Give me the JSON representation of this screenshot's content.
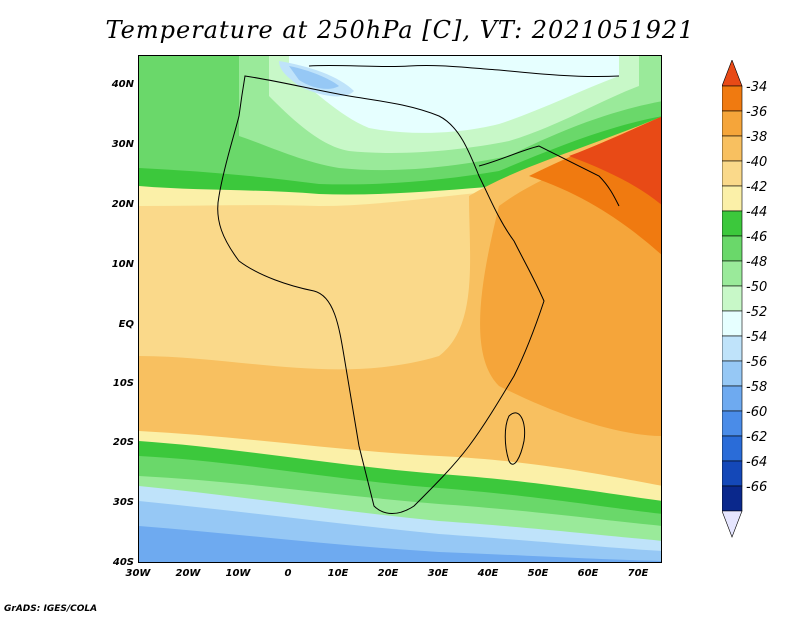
{
  "title": "Temperature at 250hPa [C], VT: 2021051921",
  "credit": "GrADS: IGES/COLA",
  "lat_labels": [
    "40N",
    "30N",
    "20N",
    "10N",
    "EQ",
    "10S",
    "20S",
    "30S",
    "40S"
  ],
  "lon_labels": [
    "30W",
    "20W",
    "10W",
    "0",
    "10E",
    "20E",
    "30E",
    "40E",
    "50E",
    "60E",
    "70E"
  ],
  "colorbar": {
    "labels": [
      "-34",
      "-36",
      "-38",
      "-40",
      "-42",
      "-44",
      "-46",
      "-48",
      "-50",
      "-52",
      "-54",
      "-56",
      "-58",
      "-60",
      "-62",
      "-64",
      "-66"
    ],
    "colors": [
      "#e84a16",
      "#f07a10",
      "#f5a53a",
      "#f8c060",
      "#fad98a",
      "#fbf0a8",
      "#3cc83c",
      "#6ad86a",
      "#9aea9a",
      "#c8f8c8",
      "#e6ffff",
      "#bfe3fa",
      "#96c8f5",
      "#6eaaf0",
      "#4a8ce8",
      "#2a6cd8",
      "#1448b8",
      "#0a288c",
      "#e6e6ff"
    ]
  }
}
